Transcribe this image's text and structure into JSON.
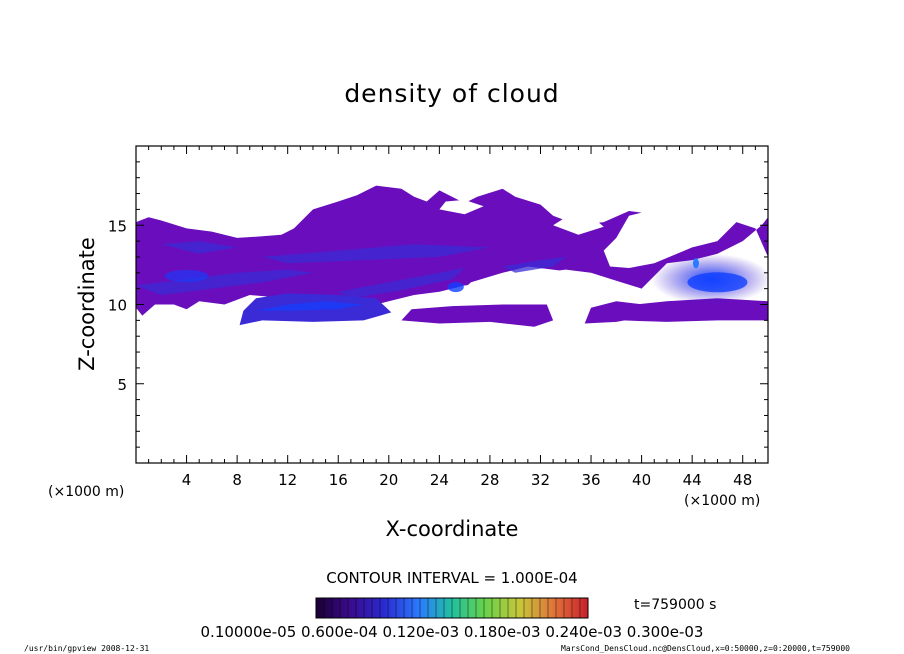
{
  "chart_data": {
    "type": "heatmap",
    "title": "density of cloud",
    "xlabel": "X-coordinate",
    "ylabel": "Z-coordinate",
    "x_unit_left": "(×1000 m)",
    "x_unit_right": "(×1000 m)",
    "xlim": [
      0,
      50
    ],
    "ylim": [
      0,
      20
    ],
    "x_ticks": [
      "4",
      "8",
      "12",
      "16",
      "20",
      "24",
      "28",
      "32",
      "36",
      "40",
      "44",
      "48"
    ],
    "y_ticks": [
      "5",
      "10",
      "15"
    ],
    "contour_interval": "CONTOUR INTERVAL = 1.000E-04",
    "time_label": "t=759000 s",
    "colorbar_labels": "0.10000e-05 0.600e-04 0.120e-03 0.180e-03 0.240e-03 0.300e-03",
    "colors": {
      "low": "#6a0dbd",
      "mid": "#3a2bd6",
      "high": "#1240ff",
      "accent": "#2a7bff"
    },
    "cloud_regions": [
      {
        "name": "upper band",
        "x": [
          0,
          50
        ],
        "z": [
          10.0,
          17.5
        ],
        "level": "low"
      },
      {
        "name": "lower-left lens",
        "x": [
          8,
          20
        ],
        "z": [
          8.8,
          10.6
        ],
        "level": "mid"
      },
      {
        "name": "lower-middle lens",
        "x": [
          21,
          33
        ],
        "z": [
          8.6,
          10.0
        ],
        "level": "low"
      },
      {
        "name": "right core",
        "x": [
          40,
          50
        ],
        "z": [
          10.0,
          12.8
        ],
        "level": "high"
      }
    ]
  },
  "footer": {
    "left": "/usr/bin/gpview   2008-12-31",
    "right": "MarsCond_DensCloud.nc@DensCloud,x=0:50000,z=0:20000,t=759000"
  }
}
